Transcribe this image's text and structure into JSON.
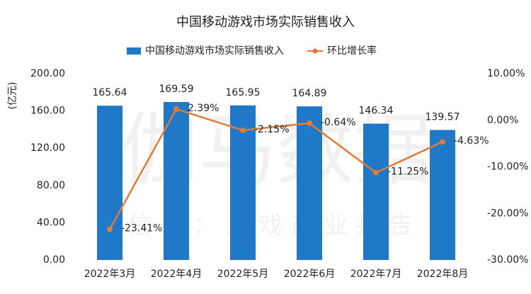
{
  "chart_data": {
    "type": "bar_line",
    "title": "中国移动游戏市场实际销售收入",
    "watermark": [
      "伽马数据",
      "微信号：游戏产业报告"
    ],
    "ylabel": "(亿元)",
    "categories": [
      "2022年3月",
      "2022年4月",
      "2022年5月",
      "2022年6月",
      "2022年7月",
      "2022年8月"
    ],
    "series": [
      {
        "name": "中国移动游戏市场实际销售收入",
        "type": "bar",
        "color": "#1f78c8",
        "values": [
          165.64,
          169.59,
          165.95,
          164.89,
          146.34,
          139.57
        ]
      },
      {
        "name": "环比增长率",
        "type": "line",
        "axis": "y2",
        "color": "#e07b39",
        "values": [
          -23.41,
          2.39,
          -2.15,
          -0.64,
          -11.25,
          -4.63
        ],
        "value_labels": [
          "-23.41%",
          "2.39%",
          "-2.15%",
          "-0.64%",
          "-11.25%",
          "-4.63%"
        ]
      }
    ],
    "ylim": [
      0,
      200
    ],
    "yticks": [
      {
        "value": 0,
        "label": "0.00"
      },
      {
        "value": 40,
        "label": "40.00"
      },
      {
        "value": 80,
        "label": "80.00"
      },
      {
        "value": 120,
        "label": "120.00"
      },
      {
        "value": 160,
        "label": "160.00"
      },
      {
        "value": 200,
        "label": "200.00"
      }
    ],
    "y2lim": [
      -30,
      10
    ],
    "y2ticks": [
      {
        "value": -30,
        "label": "-30.00%"
      },
      {
        "value": -20,
        "label": "-20.00%"
      },
      {
        "value": -10,
        "label": "-10.00%"
      },
      {
        "value": 0,
        "label": "0.00%"
      },
      {
        "value": 10,
        "label": "10.00%"
      }
    ],
    "legend": "top"
  }
}
